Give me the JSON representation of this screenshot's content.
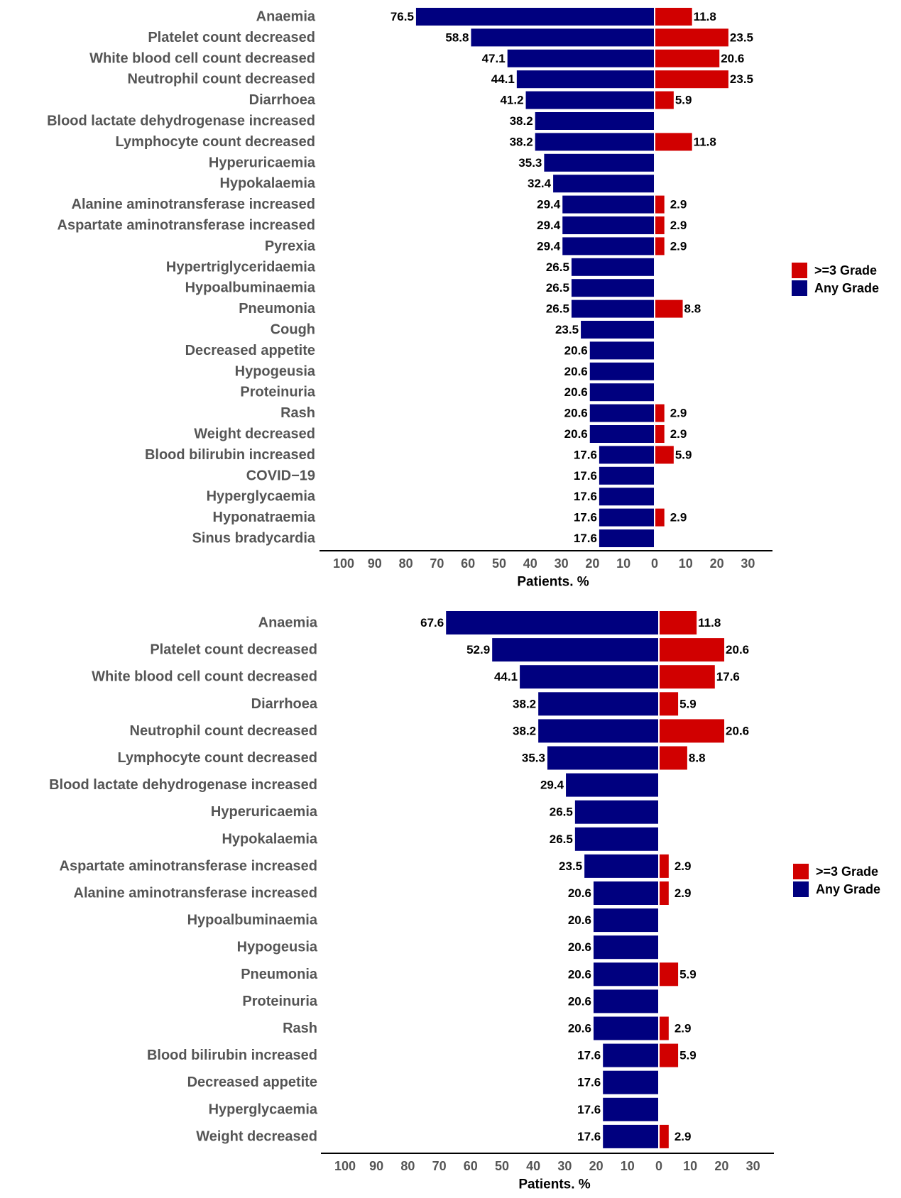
{
  "colors": {
    "any_grade": "#00007f",
    "grade3": "#d10000",
    "category_label": "#555555",
    "value_label": "#000000",
    "axis": "#000000"
  },
  "legend": {
    "grade3_label": ">=3 Grade",
    "any_label": "Any Grade"
  },
  "chart_data": [
    {
      "type": "bar",
      "orientation": "horizontal-diverging",
      "title": "",
      "xlabel": "Patients. %",
      "ylabel": "",
      "xlim": [
        -100,
        30
      ],
      "x_ticks": [
        "100",
        "90",
        "80",
        "70",
        "60",
        "50",
        "40",
        "30",
        "20",
        "10",
        "0",
        "10",
        "20",
        "30"
      ],
      "legend_position": "right",
      "categories": [
        "Anaemia",
        "Platelet count decreased",
        "White blood cell count decreased",
        "Neutrophil count decreased",
        "Diarrhoea",
        "Blood lactate dehydrogenase increased",
        "Lymphocyte count decreased",
        "Hyperuricaemia",
        "Hypokalaemia",
        "Alanine aminotransferase increased",
        "Aspartate aminotransferase increased",
        "Pyrexia",
        "Hypertriglyceridaemia",
        "Hypoalbuminaemia",
        "Pneumonia",
        "Cough",
        "Decreased appetite",
        "Hypogeusia",
        "Proteinuria",
        "Rash",
        "Weight decreased",
        "Blood bilirubin increased",
        "COVID−19",
        "Hyperglycaemia",
        "Hyponatraemia",
        "Sinus bradycardia"
      ],
      "series": [
        {
          "name": "Any Grade",
          "values": [
            "76.5",
            "58.8",
            "47.1",
            "44.1",
            "41.2",
            "38.2",
            "38.2",
            "35.3",
            "32.4",
            "29.4",
            "29.4",
            "29.4",
            "26.5",
            "26.5",
            "26.5",
            "23.5",
            "20.6",
            "20.6",
            "20.6",
            "20.6",
            "20.6",
            "17.6",
            "17.6",
            "17.6",
            "17.6",
            "17.6"
          ]
        },
        {
          "name": ">=3 Grade",
          "values": [
            "11.8",
            "23.5",
            "20.6",
            "23.5",
            "5.9",
            null,
            "11.8",
            null,
            null,
            "2.9",
            "2.9",
            "2.9",
            null,
            null,
            "8.8",
            null,
            null,
            null,
            null,
            "2.9",
            "2.9",
            "5.9",
            null,
            null,
            "2.9",
            null
          ]
        }
      ]
    },
    {
      "type": "bar",
      "orientation": "horizontal-diverging",
      "title": "",
      "xlabel": "Patients. %",
      "ylabel": "",
      "xlim": [
        -100,
        30
      ],
      "x_ticks": [
        "100",
        "90",
        "80",
        "70",
        "60",
        "50",
        "40",
        "30",
        "20",
        "10",
        "0",
        "10",
        "20",
        "30"
      ],
      "legend_position": "right",
      "categories": [
        "Anaemia",
        "Platelet count decreased",
        "White blood cell count decreased",
        "Diarrhoea",
        "Neutrophil count decreased",
        "Lymphocyte count decreased",
        "Blood lactate dehydrogenase increased",
        "Hyperuricaemia",
        "Hypokalaemia",
        "Aspartate aminotransferase increased",
        "Alanine aminotransferase increased",
        "Hypoalbuminaemia",
        "Hypogeusia",
        "Pneumonia",
        "Proteinuria",
        "Rash",
        "Blood bilirubin increased",
        "Decreased appetite",
        "Hyperglycaemia",
        "Weight decreased"
      ],
      "series": [
        {
          "name": "Any Grade",
          "values": [
            "67.6",
            "52.9",
            "44.1",
            "38.2",
            "38.2",
            "35.3",
            "29.4",
            "26.5",
            "26.5",
            "23.5",
            "20.6",
            "20.6",
            "20.6",
            "20.6",
            "20.6",
            "20.6",
            "17.6",
            "17.6",
            "17.6",
            "17.6"
          ]
        },
        {
          "name": ">=3 Grade",
          "values": [
            "11.8",
            "20.6",
            "17.6",
            "5.9",
            "20.6",
            "8.8",
            null,
            null,
            null,
            "2.9",
            "2.9",
            null,
            null,
            "5.9",
            null,
            "2.9",
            "5.9",
            null,
            null,
            "2.9"
          ]
        }
      ]
    }
  ]
}
